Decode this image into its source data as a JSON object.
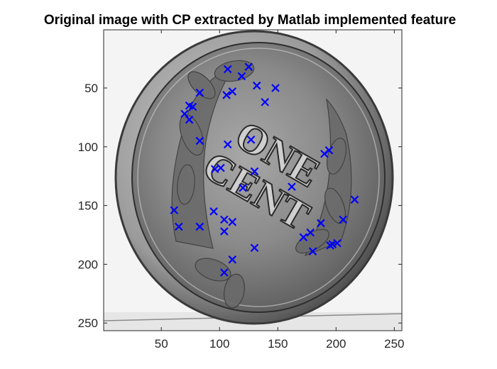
{
  "chart_data": {
    "type": "scatter",
    "title": "Original image with CP extracted by Matlab implemented feature",
    "xlabel": "",
    "ylabel": "",
    "xlim": [
      0.5,
      256.5
    ],
    "ylim": [
      0.5,
      256.5
    ],
    "y_direction": "reversed",
    "grid": false,
    "legend": "none",
    "xticks": [
      50,
      100,
      150,
      200,
      250
    ],
    "yticks": [
      50,
      100,
      150,
      200,
      250
    ],
    "xtick_labels": [
      "50",
      "100",
      "150",
      "200",
      "250"
    ],
    "ytick_labels": [
      "50",
      "100",
      "150",
      "200",
      "250"
    ],
    "background_image": "grayscale photo of a one cent coin",
    "marker": "x",
    "marker_color": "#0000ff",
    "series": [
      {
        "x": [
          107,
          125,
          119,
          132,
          148,
          139,
          111,
          106,
          83,
          74,
          77,
          70,
          74,
          83,
          107,
          127,
          96,
          101,
          130,
          120,
          162,
          190,
          194,
          216,
          206,
          187,
          178,
          172,
          180,
          197,
          201,
          195,
          61,
          65,
          83,
          95,
          104,
          111,
          104,
          111,
          130,
          104
        ],
        "y": [
          34,
          32,
          40,
          48,
          50,
          62,
          53,
          56,
          54,
          65,
          66,
          72,
          77,
          95,
          98,
          94,
          119,
          118,
          121,
          135,
          134,
          106,
          103,
          145,
          162,
          165,
          173,
          177,
          189,
          183,
          182,
          184,
          154,
          168,
          168,
          155,
          162,
          164,
          172,
          196,
          186,
          207
        ]
      }
    ]
  },
  "coin": {
    "line1": "ONE",
    "line2": "CENT"
  },
  "colors": {
    "marker": "#0000ff",
    "axes": "#262626",
    "background": "#f5f5f5"
  }
}
